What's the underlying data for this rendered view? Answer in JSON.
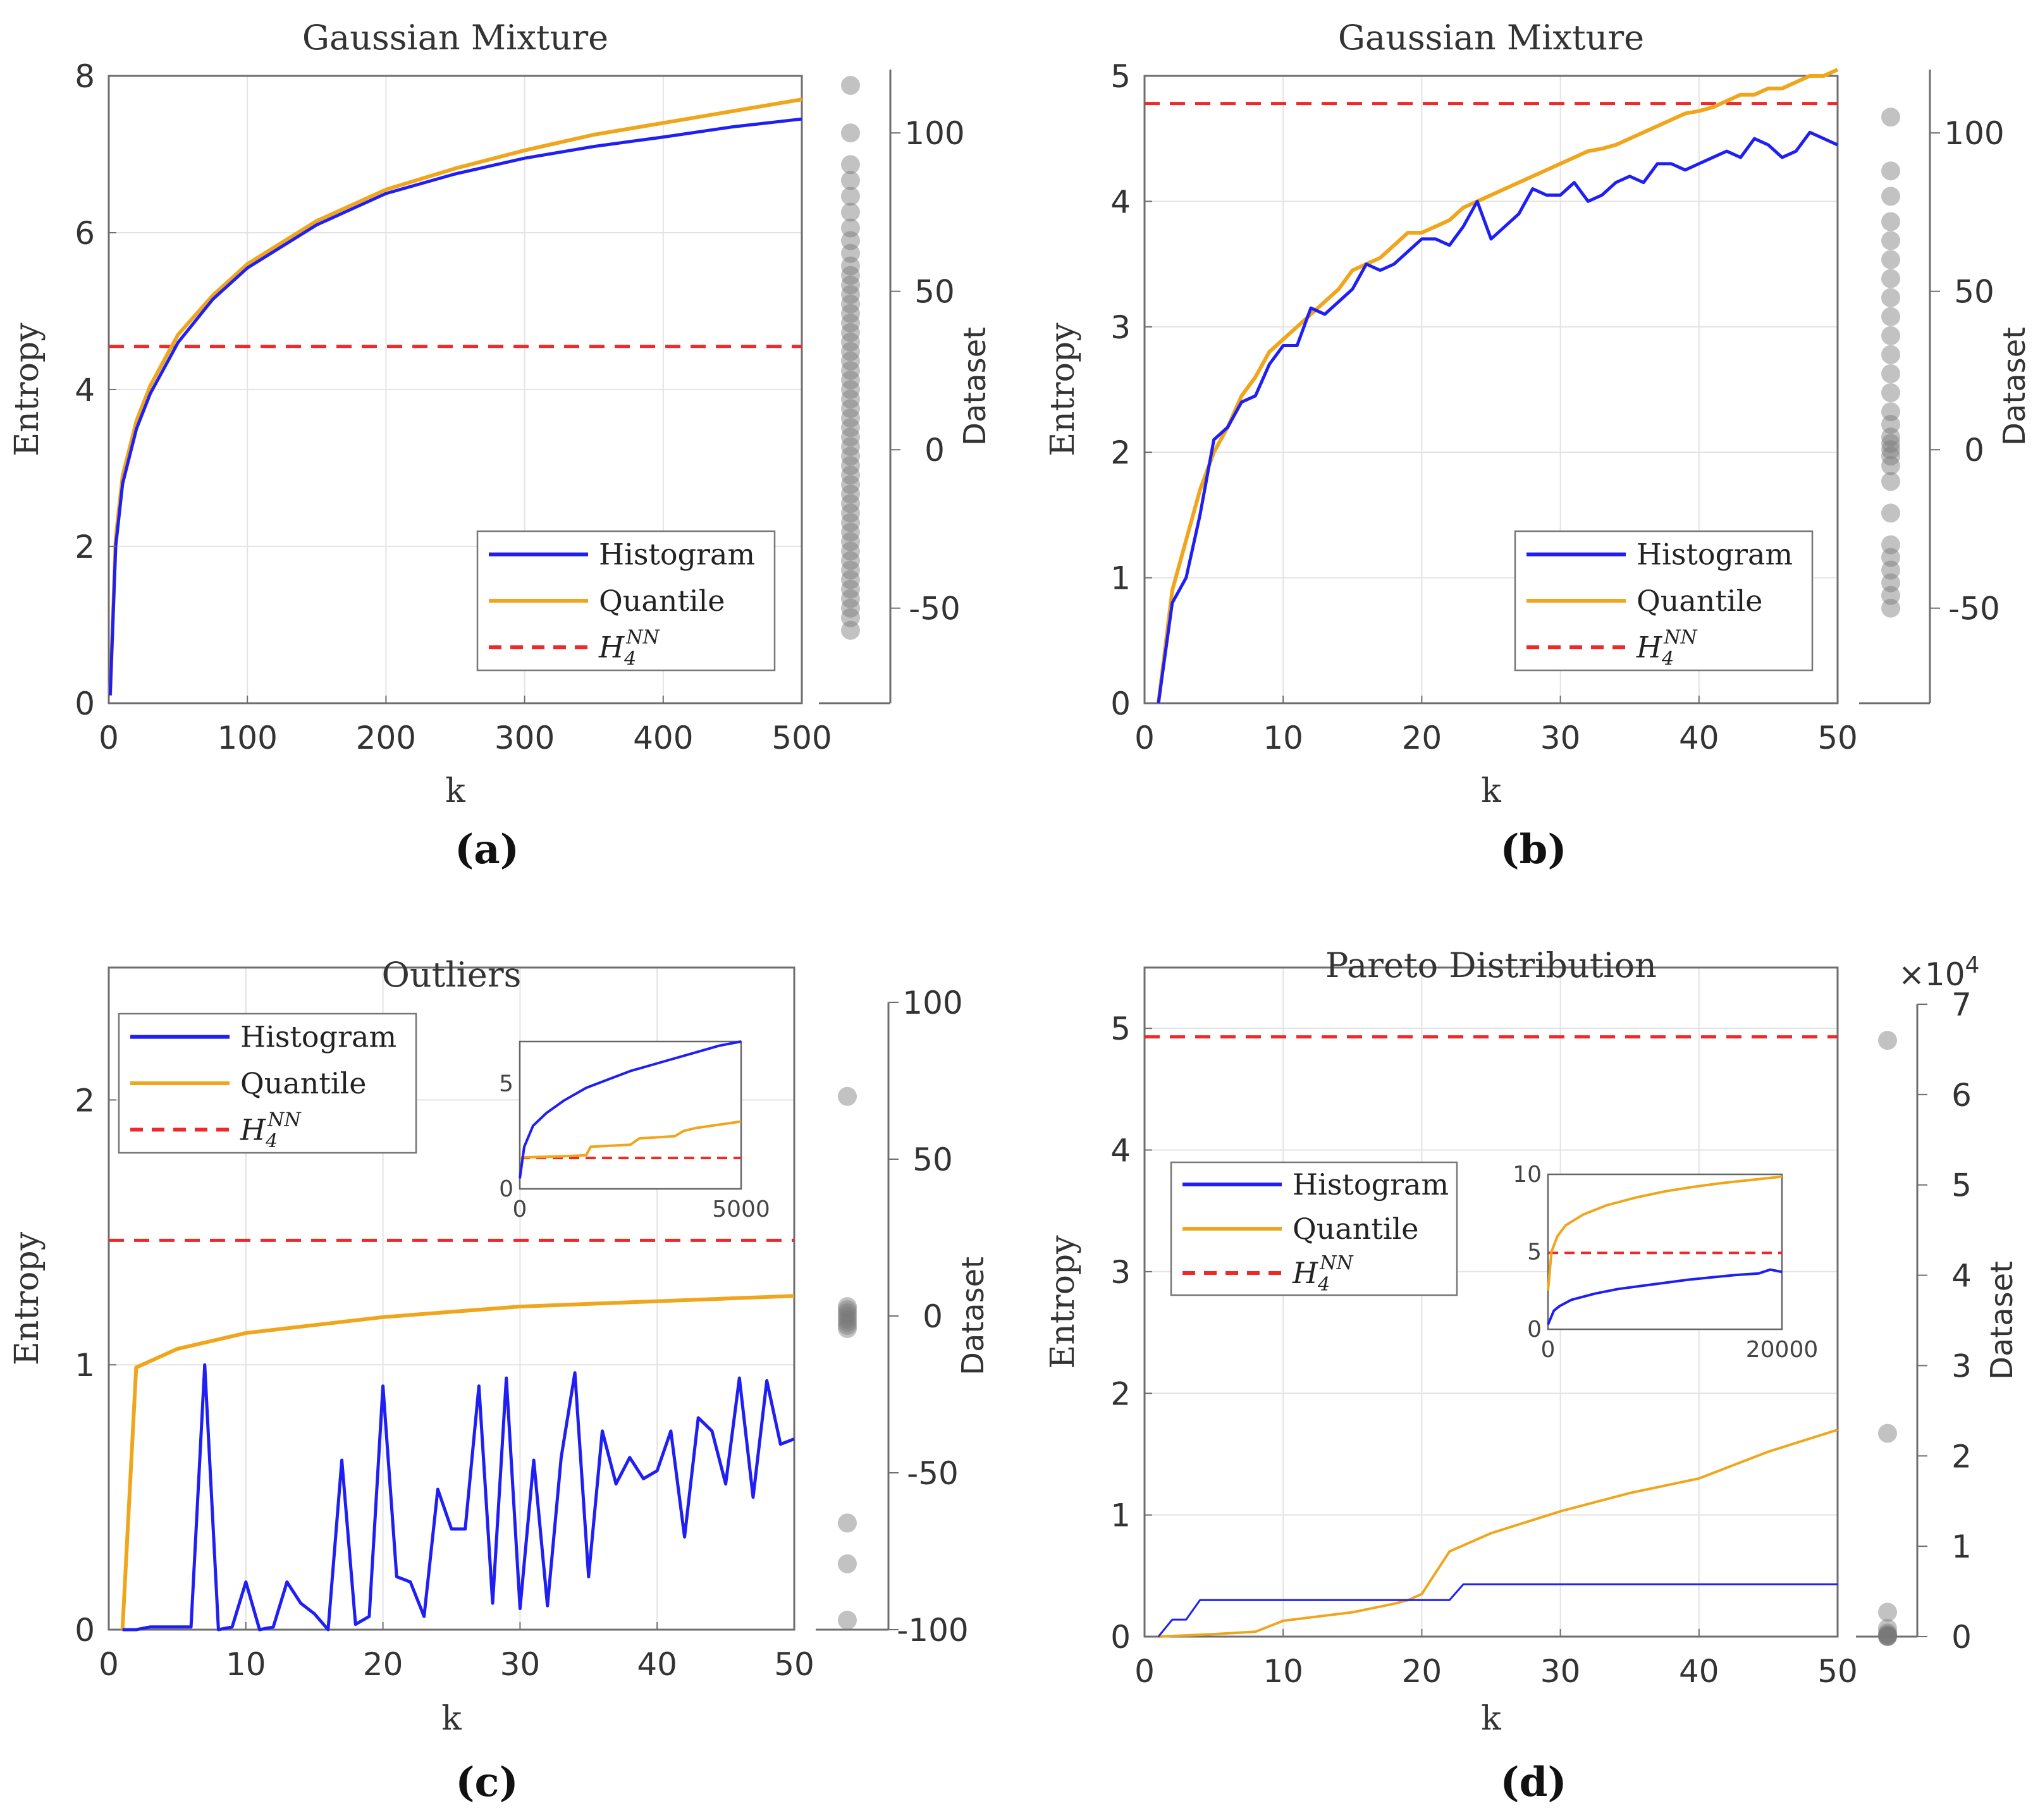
{
  "colors": {
    "histogram": "#1f1ff5",
    "quantile": "#f0a61c",
    "hnn": "#f0282a",
    "grid": "#e3e3e3",
    "axis": "#6e6e6e",
    "dots": "#777777"
  },
  "legend": {
    "histogram": "Histogram",
    "quantile": "Quantile",
    "hnn_base": "H",
    "hnn_sub": "4",
    "hnn_sup": "NN"
  },
  "chart_data": [
    {
      "id": "a",
      "type": "line",
      "panel_label": "(a)",
      "title": "Gaussian Mixture",
      "xlabel": "k",
      "ylabel": "Entropy",
      "right_ylabel": "Dataset",
      "xlim": [
        0,
        500
      ],
      "ylim": [
        0,
        8
      ],
      "xticks": [
        "0",
        "100",
        "200",
        "300",
        "400",
        "500"
      ],
      "yticks": [
        "0",
        "2",
        "4",
        "6",
        "8"
      ],
      "right_ylim": [
        -80,
        120
      ],
      "right_yticks": [
        "-50",
        "0",
        "50",
        "100"
      ],
      "hnn_value": 4.55,
      "series": [
        {
          "name": "Histogram",
          "x": [
            1,
            5,
            10,
            20,
            30,
            50,
            75,
            100,
            150,
            200,
            250,
            300,
            350,
            400,
            450,
            500
          ],
          "y": [
            0.1,
            2.0,
            2.8,
            3.5,
            3.95,
            4.6,
            5.15,
            5.55,
            6.1,
            6.5,
            6.75,
            6.95,
            7.1,
            7.22,
            7.35,
            7.45
          ]
        },
        {
          "name": "Quantile",
          "x": [
            1,
            5,
            10,
            20,
            30,
            50,
            75,
            100,
            150,
            200,
            250,
            300,
            350,
            400,
            450,
            500
          ],
          "y": [
            0.1,
            2.1,
            2.9,
            3.6,
            4.05,
            4.7,
            5.2,
            5.6,
            6.15,
            6.55,
            6.82,
            7.05,
            7.25,
            7.4,
            7.55,
            7.7
          ]
        }
      ],
      "dataset_points": [
        115,
        100,
        90,
        85,
        80,
        75,
        70,
        66,
        62,
        58,
        55,
        52,
        49,
        46,
        43,
        40,
        37,
        34,
        31,
        28,
        25,
        22,
        19,
        16,
        13,
        10,
        7,
        4,
        1,
        -2,
        -5,
        -8,
        -11,
        -14,
        -17,
        -20,
        -23,
        -26,
        -29,
        -32,
        -35,
        -38,
        -41,
        -44,
        -47,
        -50,
        -53,
        -57
      ]
    },
    {
      "id": "b",
      "type": "line",
      "panel_label": "(b)",
      "title": "Gaussian Mixture",
      "xlabel": "k",
      "ylabel": "Entropy",
      "right_ylabel": "Dataset",
      "xlim": [
        0,
        50
      ],
      "ylim": [
        0,
        5
      ],
      "xticks": [
        "0",
        "10",
        "20",
        "30",
        "40",
        "50"
      ],
      "yticks": [
        "0",
        "1",
        "2",
        "3",
        "4",
        "5"
      ],
      "right_ylim": [
        -80,
        120
      ],
      "right_yticks": [
        "-50",
        "0",
        "50",
        "100"
      ],
      "hnn_value": 4.78,
      "series": [
        {
          "name": "Histogram",
          "x": [
            1,
            2,
            3,
            4,
            5,
            6,
            7,
            8,
            9,
            10,
            11,
            12,
            13,
            14,
            15,
            16,
            17,
            18,
            19,
            20,
            21,
            22,
            23,
            24,
            25,
            26,
            27,
            28,
            29,
            30,
            31,
            32,
            33,
            34,
            35,
            36,
            37,
            38,
            39,
            40,
            41,
            42,
            43,
            44,
            45,
            46,
            47,
            48,
            49,
            50
          ],
          "y": [
            0,
            0.8,
            1.0,
            1.5,
            2.1,
            2.2,
            2.4,
            2.45,
            2.7,
            2.85,
            2.85,
            3.15,
            3.1,
            3.2,
            3.3,
            3.5,
            3.45,
            3.5,
            3.6,
            3.7,
            3.7,
            3.65,
            3.8,
            4.0,
            3.7,
            3.8,
            3.9,
            4.1,
            4.05,
            4.05,
            4.15,
            4.0,
            4.05,
            4.15,
            4.2,
            4.15,
            4.3,
            4.3,
            4.25,
            4.3,
            4.35,
            4.4,
            4.35,
            4.5,
            4.45,
            4.35,
            4.4,
            4.55,
            4.5,
            4.45
          ]
        },
        {
          "name": "Quantile",
          "x": [
            1,
            2,
            3,
            4,
            5,
            6,
            7,
            8,
            9,
            10,
            11,
            12,
            13,
            14,
            15,
            16,
            17,
            18,
            19,
            20,
            21,
            22,
            23,
            24,
            25,
            26,
            27,
            28,
            29,
            30,
            31,
            32,
            33,
            34,
            35,
            36,
            37,
            38,
            39,
            40,
            41,
            42,
            43,
            44,
            45,
            46,
            47,
            48,
            49,
            50
          ],
          "y": [
            0,
            0.9,
            1.3,
            1.7,
            2.0,
            2.2,
            2.45,
            2.6,
            2.8,
            2.9,
            3.0,
            3.1,
            3.2,
            3.3,
            3.45,
            3.5,
            3.55,
            3.65,
            3.75,
            3.75,
            3.8,
            3.85,
            3.95,
            4.0,
            4.05,
            4.1,
            4.15,
            4.2,
            4.25,
            4.3,
            4.35,
            4.4,
            4.42,
            4.45,
            4.5,
            4.55,
            4.6,
            4.65,
            4.7,
            4.72,
            4.75,
            4.8,
            4.85,
            4.85,
            4.9,
            4.9,
            4.95,
            5.0,
            5.0,
            5.05
          ]
        }
      ],
      "dataset_points": [
        105,
        88,
        80,
        72,
        66,
        60,
        54,
        48,
        42,
        36,
        30,
        24,
        18,
        12,
        8,
        4,
        2,
        0,
        -2,
        -5,
        -10,
        -20,
        -30,
        -34,
        -38,
        -42,
        -46,
        -50
      ]
    },
    {
      "id": "c",
      "type": "line",
      "panel_label": "(c)",
      "title": "Outliers",
      "xlabel": "k",
      "ylabel": "Entropy",
      "right_ylabel": "Dataset",
      "xlim": [
        0,
        50
      ],
      "ylim": [
        0,
        2.5
      ],
      "xticks": [
        "0",
        "10",
        "20",
        "30",
        "40",
        "50"
      ],
      "yticks": [
        "0",
        "1",
        "2"
      ],
      "ytick_values": [
        0,
        1,
        2
      ],
      "right_ylim": [
        -100,
        100
      ],
      "right_yticks": [
        "-100",
        "-50",
        "0",
        "50",
        "100"
      ],
      "hnn_value": 1.47,
      "series": [
        {
          "name": "Histogram",
          "x": [
            1,
            2,
            3,
            4,
            5,
            6,
            7,
            8,
            9,
            10,
            11,
            12,
            13,
            14,
            15,
            16,
            17,
            18,
            19,
            20,
            21,
            22,
            23,
            24,
            25,
            26,
            27,
            28,
            29,
            30,
            31,
            32,
            33,
            34,
            35,
            36,
            37,
            38,
            39,
            40,
            41,
            42,
            43,
            44,
            45,
            46,
            47,
            48,
            49,
            50
          ],
          "y": [
            0,
            0,
            0.01,
            0.01,
            0.01,
            0.01,
            1.0,
            0,
            0.01,
            0.18,
            0,
            0.01,
            0.18,
            0.1,
            0.06,
            0,
            0.64,
            0.02,
            0.05,
            0.92,
            0.2,
            0.18,
            0.05,
            0.53,
            0.38,
            0.38,
            0.92,
            0.1,
            0.95,
            0.08,
            0.64,
            0.09,
            0.65,
            0.97,
            0.2,
            0.75,
            0.55,
            0.65,
            0.57,
            0.6,
            0.75,
            0.35,
            0.8,
            0.75,
            0.55,
            0.95,
            0.5,
            0.94,
            0.7,
            0.72
          ]
        },
        {
          "name": "Quantile",
          "x": [
            1,
            2,
            5,
            10,
            20,
            30,
            40,
            50
          ],
          "y": [
            0,
            0.99,
            1.06,
            1.12,
            1.18,
            1.22,
            1.24,
            1.26
          ]
        }
      ],
      "inset": {
        "xlim": [
          0,
          5000
        ],
        "ylim": [
          0,
          7
        ],
        "xticks": [
          "0",
          "5000"
        ],
        "yticks": [
          "0",
          "5"
        ],
        "hnn_value": 1.47,
        "series": [
          {
            "name": "Histogram",
            "x": [
              1,
              100,
              300,
              600,
              1000,
              1500,
              2000,
              2500,
              3000,
              3500,
              4000,
              4500,
              5000
            ],
            "y": [
              0.5,
              2.0,
              3.0,
              3.6,
              4.2,
              4.8,
              5.2,
              5.6,
              5.9,
              6.2,
              6.5,
              6.8,
              7.0
            ]
          },
          {
            "name": "Quantile",
            "x": [
              1,
              100,
              1000,
              1500,
              1600,
              2500,
              2700,
              3500,
              3700,
              4000,
              4500,
              5000
            ],
            "y": [
              1.5,
              1.5,
              1.55,
              1.6,
              2.0,
              2.1,
              2.4,
              2.5,
              2.75,
              2.9,
              3.05,
              3.2
            ]
          }
        ]
      },
      "dataset_points": [
        70,
        3,
        2,
        1,
        0,
        -1,
        -2,
        -3,
        -4,
        -66,
        -79,
        -97
      ]
    },
    {
      "id": "d",
      "type": "line",
      "panel_label": "(d)",
      "title": "Pareto Distribution",
      "xlabel": "k",
      "ylabel": "Entropy",
      "right_ylabel": "Dataset",
      "xlim": [
        0,
        50
      ],
      "ylim": [
        0,
        5.5
      ],
      "xticks": [
        "0",
        "10",
        "20",
        "30",
        "40",
        "50"
      ],
      "yticks": [
        "0",
        "1",
        "2",
        "3",
        "4",
        "5"
      ],
      "right_ylim": [
        0,
        70000
      ],
      "right_yticks": [
        "0",
        "1",
        "2",
        "3",
        "4",
        "5",
        "6",
        "7"
      ],
      "right_exponent_base": "×10",
      "right_exponent_power": "4",
      "hnn_value": 4.93,
      "series": [
        {
          "name": "Histogram",
          "x": [
            1,
            2,
            3,
            3.5,
            4,
            18,
            20,
            22,
            23,
            50
          ],
          "y": [
            0.0,
            0.14,
            0.14,
            0.22,
            0.3,
            0.3,
            0.3,
            0.3,
            0.43,
            0.43
          ]
        },
        {
          "name": "Quantile",
          "x": [
            1,
            5,
            8,
            10,
            15,
            18,
            19,
            20,
            22,
            25,
            30,
            35,
            40,
            45,
            50
          ],
          "y": [
            0.0,
            0.02,
            0.04,
            0.13,
            0.2,
            0.27,
            0.3,
            0.35,
            0.7,
            0.85,
            1.03,
            1.18,
            1.3,
            1.52,
            1.7
          ]
        }
      ],
      "inset": {
        "xlim": [
          0,
          20000
        ],
        "ylim": [
          0,
          10
        ],
        "xticks": [
          "0",
          "20000"
        ],
        "yticks": [
          "0",
          "5",
          "10"
        ],
        "hnn_value": 4.93,
        "series": [
          {
            "name": "Histogram",
            "x": [
              1,
              500,
              1000,
              2000,
              4000,
              6000,
              8000,
              10000,
              12000,
              14000,
              16000,
              18000,
              19000,
              20000
            ],
            "y": [
              0.3,
              1.2,
              1.5,
              1.9,
              2.3,
              2.6,
              2.8,
              3.0,
              3.2,
              3.35,
              3.5,
              3.6,
              3.85,
              3.7
            ]
          },
          {
            "name": "Quantile",
            "x": [
              1,
              300,
              800,
              1500,
              3000,
              5000,
              7500,
              10000,
              12500,
              15000,
              17500,
              20000
            ],
            "y": [
              2.5,
              5.0,
              6.0,
              6.7,
              7.4,
              8.0,
              8.5,
              8.9,
              9.2,
              9.45,
              9.65,
              9.85
            ]
          }
        ]
      },
      "dataset_points": [
        66000,
        22500,
        2700,
        900,
        400,
        200,
        100,
        50,
        20,
        0
      ]
    }
  ]
}
